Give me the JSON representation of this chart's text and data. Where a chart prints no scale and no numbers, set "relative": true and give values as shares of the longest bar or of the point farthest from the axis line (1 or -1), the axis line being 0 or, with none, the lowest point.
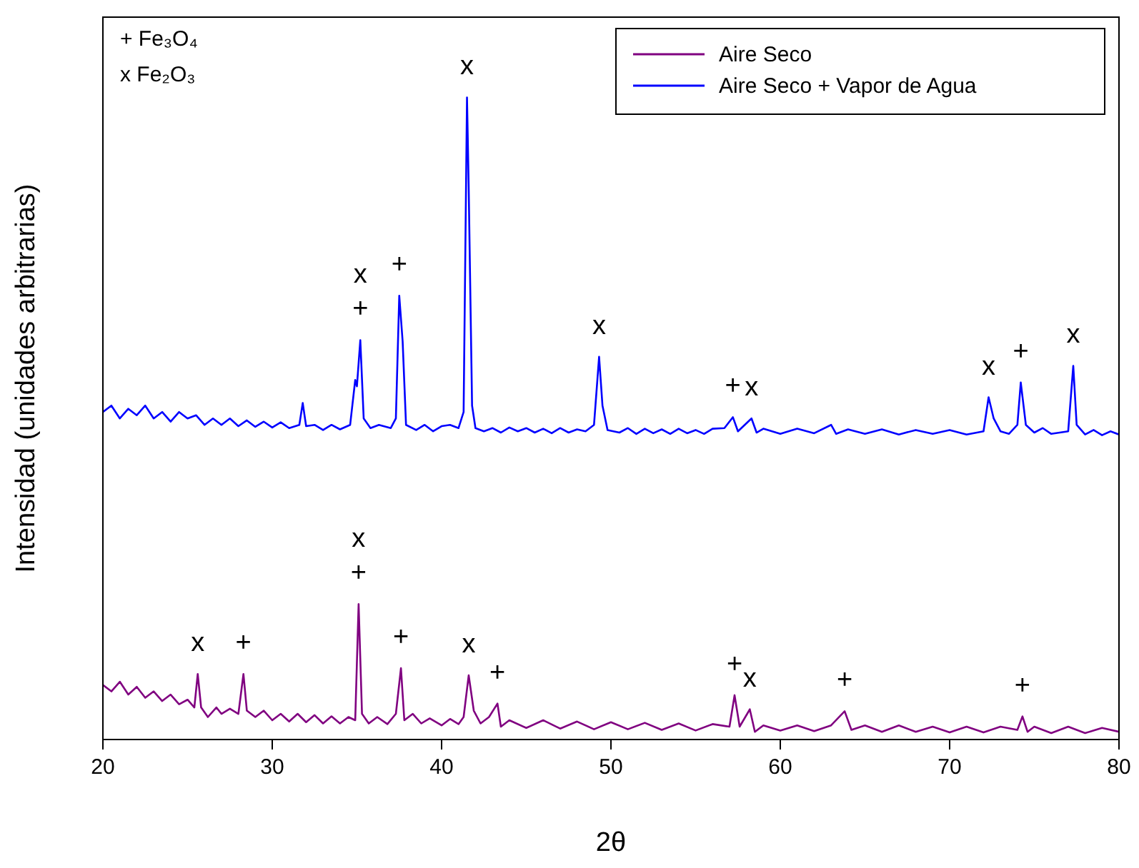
{
  "chart_data": {
    "type": "line",
    "xlabel": "2θ",
    "ylabel": "Intensidad (unidades arbitrarias)",
    "relative": true,
    "xlim": [
      20,
      80
    ],
    "xticks": [
      20,
      30,
      40,
      50,
      60,
      70,
      80
    ],
    "tick_labels": "x",
    "legend": "top right",
    "grid": false,
    "marker": "none",
    "line_style": "solid",
    "series": [
      {
        "name": "Aire Seco",
        "color": "#800080",
        "x": [
          20,
          20.5,
          21,
          21.5,
          22,
          22.5,
          23,
          23.5,
          24,
          24.5,
          25,
          25.4,
          25.6,
          25.8,
          26.2,
          26.7,
          27,
          27.5,
          28,
          28.3,
          28.5,
          29,
          29.5,
          30,
          30.5,
          31,
          31.5,
          32,
          32.5,
          33,
          33.5,
          34,
          34.5,
          34.9,
          35.1,
          35.3,
          35.7,
          36.2,
          36.8,
          37.3,
          37.6,
          37.8,
          38.3,
          38.8,
          39.3,
          40,
          40.5,
          41,
          41.3,
          41.6,
          41.9,
          42.3,
          42.8,
          43.3,
          43.5,
          44,
          45,
          46,
          47,
          48,
          49,
          50,
          51,
          52,
          53,
          54,
          55,
          56,
          57,
          57.3,
          57.6,
          58.2,
          58.5,
          59,
          60,
          61,
          62,
          63,
          63.8,
          64.2,
          65,
          66,
          67,
          68,
          69,
          70,
          71,
          72,
          73,
          74,
          74.3,
          74.6,
          75,
          76,
          77,
          78,
          79,
          80
        ],
        "values": [
          0.085,
          0.075,
          0.09,
          0.07,
          0.082,
          0.065,
          0.075,
          0.06,
          0.07,
          0.055,
          0.062,
          0.05,
          0.102,
          0.05,
          0.035,
          0.05,
          0.04,
          0.048,
          0.04,
          0.102,
          0.045,
          0.035,
          0.045,
          0.03,
          0.04,
          0.028,
          0.04,
          0.027,
          0.038,
          0.025,
          0.036,
          0.025,
          0.035,
          0.03,
          0.211,
          0.04,
          0.025,
          0.035,
          0.024,
          0.04,
          0.111,
          0.03,
          0.04,
          0.025,
          0.033,
          0.022,
          0.032,
          0.024,
          0.035,
          0.1,
          0.045,
          0.025,
          0.035,
          0.056,
          0.02,
          0.03,
          0.018,
          0.03,
          0.017,
          0.028,
          0.016,
          0.027,
          0.016,
          0.026,
          0.015,
          0.025,
          0.014,
          0.024,
          0.02,
          0.069,
          0.02,
          0.047,
          0.012,
          0.022,
          0.014,
          0.022,
          0.013,
          0.022,
          0.044,
          0.015,
          0.022,
          0.012,
          0.022,
          0.012,
          0.02,
          0.011,
          0.02,
          0.011,
          0.02,
          0.015,
          0.036,
          0.012,
          0.02,
          0.01,
          0.02,
          0.01,
          0.018,
          0.012
        ]
      },
      {
        "name": "Aire Seco + Vapor de Agua",
        "color": "#0000ff",
        "x": [
          20,
          20.5,
          21,
          21.5,
          22,
          22.5,
          23,
          23.5,
          24,
          24.5,
          25,
          25.5,
          26,
          26.5,
          27,
          27.5,
          28,
          28.5,
          29,
          29.5,
          30,
          30.5,
          31,
          31.6,
          31.8,
          32,
          32.5,
          33,
          33.5,
          34,
          34.6,
          34.9,
          35,
          35.2,
          35.4,
          35.8,
          36.3,
          37,
          37.3,
          37.5,
          37.7,
          37.9,
          38.5,
          39,
          39.5,
          40,
          40.5,
          41,
          41.3,
          41.5,
          41.6,
          41.8,
          42,
          42.5,
          43,
          43.5,
          44,
          44.5,
          45,
          45.5,
          46,
          46.5,
          47,
          47.5,
          48,
          48.5,
          49,
          49.3,
          49.5,
          49.8,
          50.5,
          51,
          51.5,
          52,
          52.5,
          53,
          53.5,
          54,
          54.5,
          55,
          55.5,
          56,
          56.7,
          57.2,
          57.5,
          58.3,
          58.6,
          59,
          60,
          61,
          62,
          63,
          63.3,
          64,
          65,
          66,
          67,
          68,
          69,
          70,
          71,
          72,
          72.3,
          72.6,
          73,
          73.5,
          74,
          74.2,
          74.5,
          75,
          75.5,
          76,
          77,
          77.3,
          77.5,
          78,
          78.5,
          79,
          79.5,
          80
        ],
        "values": [
          0.51,
          0.52,
          0.5,
          0.515,
          0.505,
          0.52,
          0.5,
          0.51,
          0.495,
          0.51,
          0.5,
          0.505,
          0.49,
          0.5,
          0.49,
          0.5,
          0.488,
          0.497,
          0.487,
          0.495,
          0.486,
          0.494,
          0.485,
          0.49,
          0.524,
          0.488,
          0.49,
          0.482,
          0.49,
          0.483,
          0.49,
          0.56,
          0.55,
          0.622,
          0.5,
          0.485,
          0.49,
          0.485,
          0.5,
          0.691,
          0.62,
          0.49,
          0.482,
          0.49,
          0.48,
          0.488,
          0.49,
          0.485,
          0.51,
          1.0,
          0.86,
          0.52,
          0.485,
          0.48,
          0.485,
          0.478,
          0.486,
          0.48,
          0.485,
          0.478,
          0.484,
          0.477,
          0.485,
          0.478,
          0.483,
          0.48,
          0.49,
          0.596,
          0.52,
          0.482,
          0.478,
          0.485,
          0.476,
          0.484,
          0.477,
          0.483,
          0.476,
          0.484,
          0.477,
          0.482,
          0.476,
          0.484,
          0.485,
          0.502,
          0.48,
          0.5,
          0.478,
          0.484,
          0.476,
          0.484,
          0.477,
          0.49,
          0.476,
          0.483,
          0.476,
          0.483,
          0.475,
          0.482,
          0.476,
          0.482,
          0.475,
          0.48,
          0.533,
          0.5,
          0.48,
          0.476,
          0.49,
          0.556,
          0.49,
          0.478,
          0.485,
          0.476,
          0.48,
          0.582,
          0.49,
          0.475,
          0.482,
          0.474,
          0.48,
          0.475
        ]
      }
    ],
    "annotations": [
      "+  Fe₃O₄",
      "x  Fe₂O₃",
      {
        "text": "+",
        "x": 35.2,
        "y": 0.622
      },
      {
        "text": "x",
        "x": 35.2,
        "y": 0.622
      },
      {
        "text": "+",
        "x": 37.5,
        "y": 0.691
      },
      {
        "text": "x",
        "x": 41.5,
        "y": 1.0
      },
      {
        "text": "x",
        "x": 49.3,
        "y": 0.596
      },
      {
        "text": "+",
        "x": 57.2,
        "y": 0.502
      },
      {
        "text": "x",
        "x": 58.3,
        "y": 0.5
      },
      {
        "text": "x",
        "x": 72.3,
        "y": 0.533
      },
      {
        "text": "+",
        "x": 74.2,
        "y": 0.556
      },
      {
        "text": "x",
        "x": 77.3,
        "y": 0.582
      },
      {
        "text": "x",
        "x": 25.6,
        "y": 0.102
      },
      {
        "text": "+",
        "x": 28.3,
        "y": 0.102
      },
      {
        "text": "+",
        "x": 35.1,
        "y": 0.211
      },
      {
        "text": "x",
        "x": 35.1,
        "y": 0.211
      },
      {
        "text": "+",
        "x": 37.6,
        "y": 0.111
      },
      {
        "text": "x",
        "x": 41.6,
        "y": 0.1
      },
      {
        "text": "+",
        "x": 43.3,
        "y": 0.056
      },
      {
        "text": "+",
        "x": 57.3,
        "y": 0.069
      },
      {
        "text": "x",
        "x": 58.2,
        "y": 0.047
      },
      {
        "text": "+",
        "x": 63.8,
        "y": 0.044
      },
      {
        "text": "+",
        "x": 74.3,
        "y": 0.036
      }
    ]
  }
}
